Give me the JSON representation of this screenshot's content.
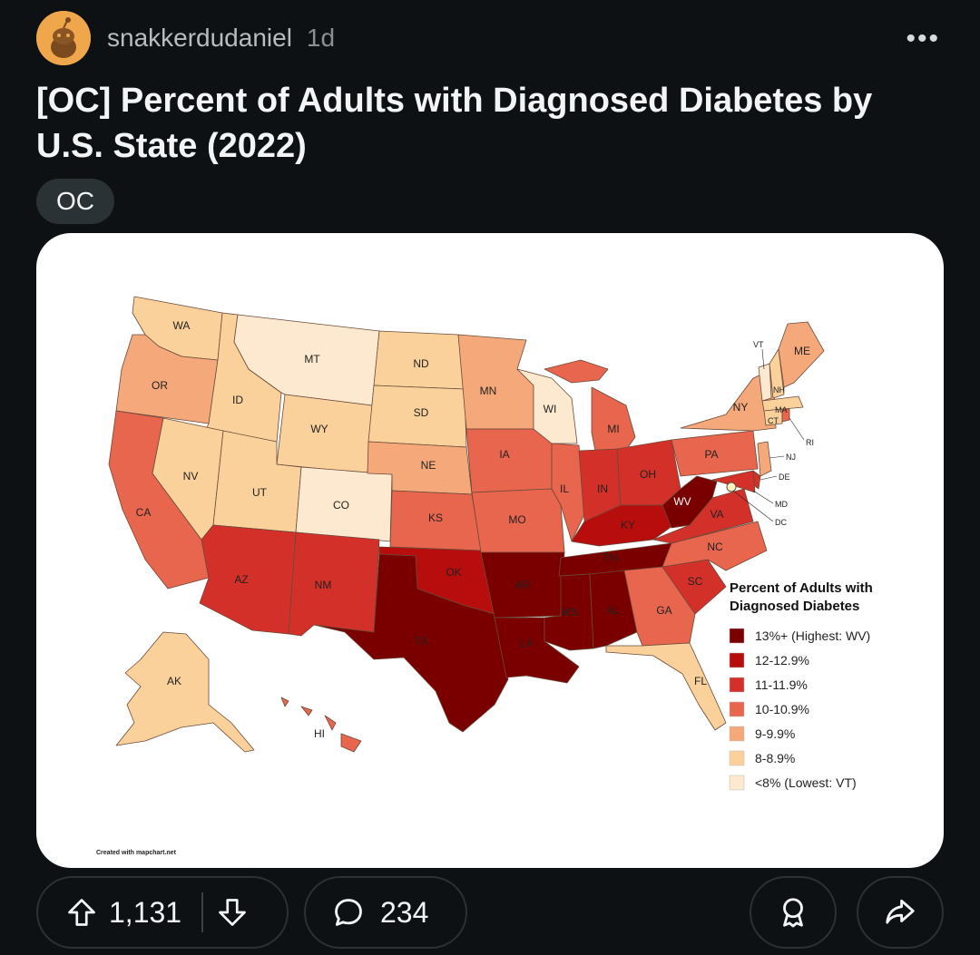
{
  "post": {
    "username": "snakkerdudaniel",
    "time": "1d",
    "more_label": "•••",
    "title": "[OC] Percent of Adults with Diagnosed Diabetes by U.S. State (2022)",
    "flair": "OC",
    "upvotes": "1,131",
    "comments": "234"
  },
  "icons": {
    "avatar": "reddit-snoo-avatar",
    "upvote": "arrow-up-icon",
    "downvote": "arrow-down-icon",
    "comment": "speech-bubble-icon",
    "award": "award-ribbon-icon",
    "share": "share-arrow-icon"
  },
  "map": {
    "legend_title_line1": "Percent of Adults with",
    "legend_title_line2": "Diagnosed Diabetes",
    "credit": "Created with mapchart.net",
    "legend": [
      {
        "label": "13%+ (Highest: WV)",
        "color": "#7a0000"
      },
      {
        "label": "12-12.9%",
        "color": "#b80d0d"
      },
      {
        "label": "11-11.9%",
        "color": "#d3302a"
      },
      {
        "label": "10-10.9%",
        "color": "#e8654e"
      },
      {
        "label": "9-9.9%",
        "color": "#f5a97a"
      },
      {
        "label": "8-8.9%",
        "color": "#fbd19b"
      },
      {
        "label": "<8% (Lowest: VT)",
        "color": "#fde9cf"
      }
    ],
    "state_labels": {
      "WA": "WA",
      "OR": "OR",
      "CA": "CA",
      "ID": "ID",
      "NV": "NV",
      "MT": "MT",
      "WY": "WY",
      "UT": "UT",
      "AZ": "AZ",
      "CO": "CO",
      "NM": "NM",
      "ND": "ND",
      "SD": "SD",
      "NE": "NE",
      "KS": "KS",
      "OK": "OK",
      "TX": "TX",
      "MN": "MN",
      "IA": "IA",
      "MO": "MO",
      "AR": "AR",
      "LA": "LA",
      "WI": "WI",
      "IL": "IL",
      "MI": "MI",
      "IN": "IN",
      "OH": "OH",
      "KY": "KY",
      "TN": "TN",
      "MS": "MS",
      "AL": "AL",
      "GA": "GA",
      "FL": "FL",
      "SC": "SC",
      "NC": "NC",
      "VA": "VA",
      "WV": "WV",
      "PA": "PA",
      "NY": "NY",
      "ME": "ME",
      "VT": "VT",
      "NH": "NH",
      "MA": "MA",
      "CT": "CT",
      "RI": "RI",
      "NJ": "NJ",
      "DE": "DE",
      "MD": "MD",
      "DC": "DC",
      "AK": "AK",
      "HI": "HI"
    }
  }
}
